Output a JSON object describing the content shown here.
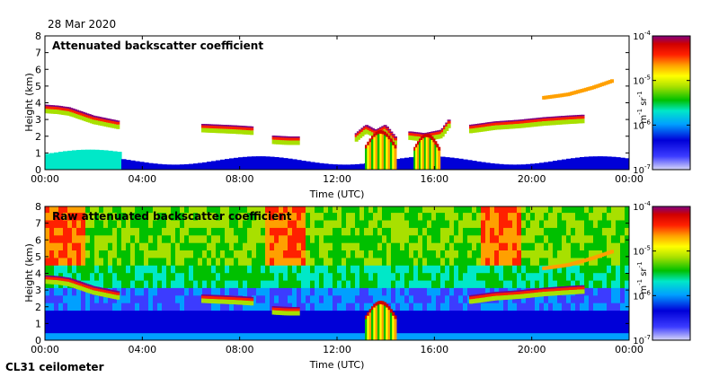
{
  "chart_data": [
    {
      "type": "heatmap",
      "title": "Attenuated backscatter coefficient",
      "xlabel": "Time (UTC)",
      "ylabel": "Height (km)",
      "xlim": [
        0,
        24
      ],
      "ylim": [
        0,
        8
      ],
      "xticks": [
        0,
        4,
        8,
        12,
        16,
        20,
        24
      ],
      "xtick_labels": [
        "00:00",
        "04:00",
        "08:00",
        "12:00",
        "16:00",
        "20:00",
        "00:00"
      ],
      "yticks": [
        0,
        1,
        2,
        3,
        4,
        5,
        6,
        7,
        8
      ],
      "ytick_labels": [
        "0",
        "1",
        "2",
        "3",
        "4",
        "5",
        "6",
        "7",
        "8"
      ],
      "colorbar": {
        "scale": "log",
        "range": [
          1e-07,
          0.0001
        ],
        "tick_labels": [
          [
            "10",
            "-4"
          ],
          [
            "10",
            "-5"
          ],
          [
            "10",
            "-6"
          ],
          [
            "10",
            "-7"
          ]
        ],
        "label_parts": [
          "m",
          "-1",
          " sr",
          "-1"
        ]
      },
      "features": [
        {
          "kind": "cloud_layer",
          "t": [
            0.0,
            0.5,
            1.0,
            1.5,
            2.0,
            2.5,
            3.0
          ],
          "h": [
            3.7,
            3.65,
            3.55,
            3.3,
            3.05,
            2.9,
            2.75
          ]
        },
        {
          "kind": "cloud_layer",
          "t": [
            6.5,
            7.3,
            8.0,
            8.5
          ],
          "h": [
            2.55,
            2.5,
            2.45,
            2.4
          ]
        },
        {
          "kind": "cloud_layer",
          "t": [
            9.4,
            10.0,
            10.4
          ],
          "h": [
            1.85,
            1.8,
            1.8
          ]
        },
        {
          "kind": "cloud_layer",
          "t": [
            12.8,
            13.2,
            13.6,
            14.0,
            14.4
          ],
          "h": [
            2.0,
            2.5,
            2.2,
            2.5,
            1.8
          ]
        },
        {
          "kind": "cloud_layer",
          "t": [
            15.0,
            15.6,
            16.3,
            16.6
          ],
          "h": [
            2.1,
            2.0,
            2.2,
            2.8
          ]
        },
        {
          "kind": "cloud_layer",
          "t": [
            17.5,
            18.5,
            19.5,
            20.5,
            21.5,
            22.1
          ],
          "h": [
            2.5,
            2.7,
            2.8,
            2.95,
            3.05,
            3.1
          ]
        },
        {
          "kind": "precipitation",
          "t": [
            13.2,
            14.4
          ],
          "top": 2.2
        },
        {
          "kind": "precipitation",
          "t": [
            15.2,
            16.2
          ],
          "top": 2.0
        },
        {
          "kind": "elevated_layer",
          "t": [
            20.5,
            21.5,
            22.5,
            23.3
          ],
          "h": [
            4.3,
            4.5,
            4.9,
            5.3
          ]
        }
      ]
    },
    {
      "type": "heatmap",
      "title": "Raw attenuated backscatter coefficient",
      "xlabel": "Time (UTC)",
      "ylabel": "Height (km)",
      "xlim": [
        0,
        24
      ],
      "ylim": [
        0,
        8
      ],
      "xticks": [
        0,
        4,
        8,
        12,
        16,
        20,
        24
      ],
      "xtick_labels": [
        "00:00",
        "04:00",
        "08:00",
        "12:00",
        "16:00",
        "20:00",
        "00:00"
      ],
      "yticks": [
        0,
        1,
        2,
        3,
        4,
        5,
        6,
        7,
        8
      ],
      "ytick_labels": [
        "0",
        "1",
        "2",
        "3",
        "4",
        "5",
        "6",
        "7",
        "8"
      ],
      "colorbar": {
        "scale": "log",
        "range": [
          1e-07,
          0.0001
        ],
        "tick_labels": [
          [
            "10",
            "-4"
          ],
          [
            "10",
            "-5"
          ],
          [
            "10",
            "-6"
          ],
          [
            "10",
            "-7"
          ]
        ],
        "label_parts": [
          "m",
          "-1",
          " sr",
          "-1"
        ]
      },
      "features": [
        {
          "kind": "cloud_layer",
          "t": [
            0.0,
            0.5,
            1.0,
            1.5,
            2.0,
            2.5,
            3.0
          ],
          "h": [
            3.7,
            3.65,
            3.55,
            3.3,
            3.05,
            2.9,
            2.75
          ]
        },
        {
          "kind": "cloud_layer",
          "t": [
            6.5,
            7.3,
            8.0,
            8.5
          ],
          "h": [
            2.55,
            2.5,
            2.45,
            2.4
          ]
        },
        {
          "kind": "cloud_layer",
          "t": [
            9.4,
            10.0,
            10.4
          ],
          "h": [
            1.85,
            1.8,
            1.8
          ]
        },
        {
          "kind": "cloud_layer",
          "t": [
            17.5,
            18.5,
            19.5,
            20.5,
            21.5,
            22.1
          ],
          "h": [
            2.5,
            2.7,
            2.8,
            2.95,
            3.05,
            3.1
          ]
        },
        {
          "kind": "precipitation",
          "t": [
            13.2,
            14.4
          ],
          "top": 2.2
        },
        {
          "kind": "elevated_layer",
          "t": [
            20.5,
            21.5,
            22.5,
            23.3
          ],
          "h": [
            4.3,
            4.5,
            4.9,
            5.3
          ]
        }
      ]
    }
  ],
  "date": "28 Mar 2020",
  "instrument": "CL31 ceilometer",
  "colors": {
    "scale": [
      "#d8d8f8",
      "#3c3cff",
      "#0000d8",
      "#00a0ff",
      "#00e8c8",
      "#00c000",
      "#a8e000",
      "#ffff00",
      "#ffa000",
      "#ff2000",
      "#d00000",
      "#800080"
    ]
  }
}
